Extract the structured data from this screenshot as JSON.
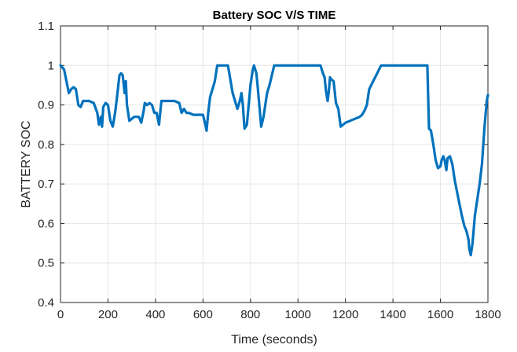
{
  "chart_data": {
    "type": "line",
    "title": "Battery SOC V/S TIME",
    "xlabel": "Time (seconds)",
    "ylabel": "BATTERY SOC",
    "xlim": [
      0,
      1800
    ],
    "ylim": [
      0.4,
      1.1
    ],
    "xticks": [
      0,
      200,
      400,
      600,
      800,
      1000,
      1200,
      1400,
      1600,
      1800
    ],
    "yticks": [
      0.4,
      0.5,
      0.6,
      0.7,
      0.8,
      0.9,
      1,
      1.1
    ],
    "grid": true,
    "line_color": "#0072BD",
    "series": [
      {
        "x": [
          0,
          15,
          25,
          35,
          45,
          55,
          65,
          75,
          85,
          95,
          120,
          140,
          155,
          162,
          170,
          175,
          180,
          190,
          200,
          210,
          220,
          230,
          240,
          248,
          255,
          262,
          270,
          275,
          280,
          290,
          300,
          310,
          320,
          330,
          340,
          350,
          355,
          365,
          375,
          385,
          395,
          405,
          415,
          425,
          440,
          460,
          480,
          500,
          510,
          520,
          530,
          540,
          560,
          580,
          600,
          608,
          615,
          622,
          630,
          640,
          650,
          660,
          670,
          680,
          690,
          700,
          705,
          715,
          725,
          745,
          755,
          762,
          768,
          775,
          785,
          800,
          810,
          815,
          820,
          825,
          830,
          840,
          845,
          855,
          870,
          880,
          890,
          900,
          950,
          1000,
          1050,
          1095,
          1105,
          1112,
          1118,
          1125,
          1130,
          1135,
          1140,
          1150,
          1160,
          1170,
          1180,
          1190,
          1200,
          1220,
          1240,
          1260,
          1270,
          1280,
          1290,
          1300,
          1350,
          1400,
          1450,
          1500,
          1530,
          1545,
          1552,
          1560,
          1570,
          1580,
          1590,
          1600,
          1605,
          1612,
          1618,
          1625,
          1630,
          1640,
          1650,
          1660,
          1670,
          1680,
          1690,
          1700,
          1710,
          1718,
          1722,
          1728,
          1735,
          1745,
          1755,
          1765,
          1775,
          1785,
          1795,
          1800
        ],
        "y": [
          1.0,
          0.99,
          0.96,
          0.93,
          0.94,
          0.945,
          0.94,
          0.9,
          0.895,
          0.91,
          0.91,
          0.905,
          0.88,
          0.85,
          0.87,
          0.845,
          0.895,
          0.905,
          0.9,
          0.86,
          0.845,
          0.88,
          0.93,
          0.975,
          0.98,
          0.975,
          0.93,
          0.96,
          0.9,
          0.86,
          0.865,
          0.87,
          0.87,
          0.87,
          0.855,
          0.885,
          0.905,
          0.9,
          0.905,
          0.9,
          0.88,
          0.88,
          0.85,
          0.91,
          0.91,
          0.91,
          0.91,
          0.905,
          0.88,
          0.89,
          0.88,
          0.88,
          0.875,
          0.875,
          0.875,
          0.855,
          0.835,
          0.88,
          0.92,
          0.94,
          0.96,
          1.0,
          1.0,
          1.0,
          1.0,
          1.0,
          1.0,
          0.965,
          0.93,
          0.89,
          0.91,
          0.93,
          0.9,
          0.84,
          0.85,
          0.95,
          0.99,
          1.0,
          0.99,
          0.98,
          0.95,
          0.88,
          0.845,
          0.87,
          0.93,
          0.95,
          0.975,
          1.0,
          1.0,
          1.0,
          1.0,
          1.0,
          0.98,
          0.97,
          0.935,
          0.91,
          0.935,
          0.97,
          0.965,
          0.96,
          0.905,
          0.89,
          0.845,
          0.85,
          0.855,
          0.86,
          0.865,
          0.87,
          0.875,
          0.885,
          0.9,
          0.94,
          1.0,
          1.0,
          1.0,
          1.0,
          1.0,
          1.0,
          0.84,
          0.835,
          0.8,
          0.76,
          0.74,
          0.745,
          0.76,
          0.77,
          0.76,
          0.735,
          0.765,
          0.77,
          0.75,
          0.71,
          0.68,
          0.65,
          0.62,
          0.595,
          0.58,
          0.56,
          0.535,
          0.52,
          0.55,
          0.62,
          0.66,
          0.7,
          0.75,
          0.84,
          0.91,
          0.925
        ]
      }
    ]
  }
}
